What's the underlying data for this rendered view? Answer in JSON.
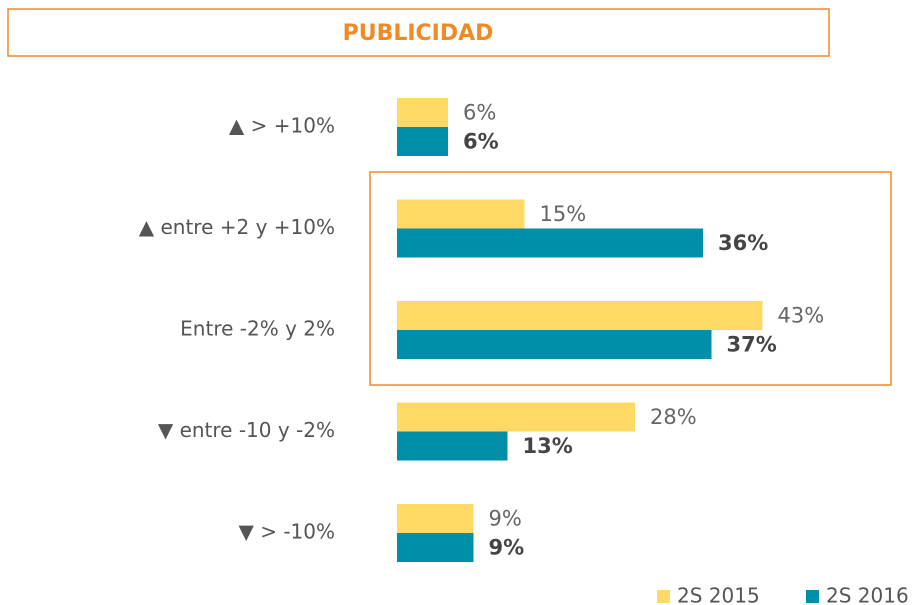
{
  "chart_data": {
    "type": "hbar",
    "title": "PUBLICIDAD",
    "categories": [
      "▲ > +10%",
      "▲ entre +2 y +10%",
      "Entre -2% y 2%",
      "▼ entre -10 y -2%",
      "▼ > -10%"
    ],
    "series": [
      {
        "name": "2S 2015",
        "color": "#fed965",
        "values": [
          6,
          15,
          43,
          28,
          9
        ],
        "value_labels": [
          "6%",
          "15%",
          "43%",
          "28%",
          "9%"
        ]
      },
      {
        "name": "2S 2016",
        "color": "#008fa8",
        "values": [
          6,
          36,
          37,
          13,
          9
        ],
        "value_labels": [
          "6%",
          "36%",
          "37%",
          "13%",
          "9%"
        ]
      }
    ],
    "legend": "bottom-right"
  }
}
